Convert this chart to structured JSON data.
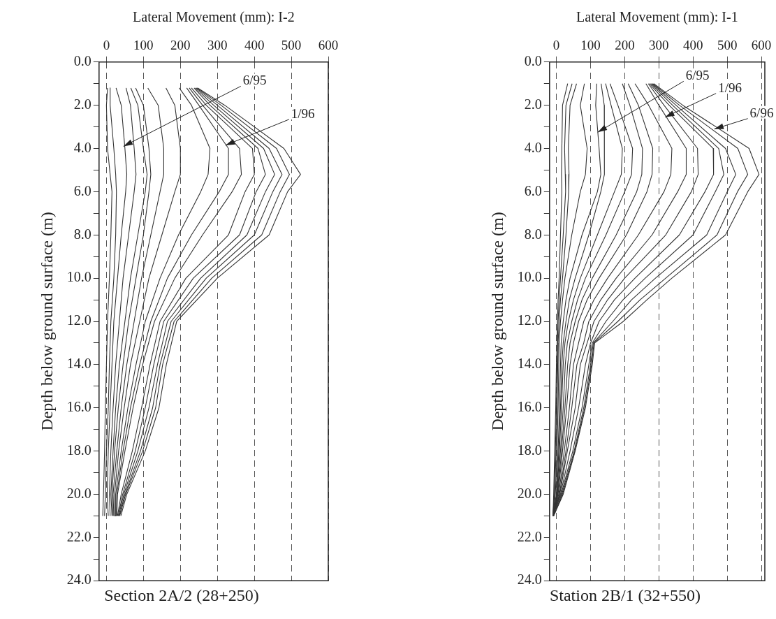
{
  "chart_data": [
    {
      "type": "line",
      "title": "Section 2A/2 (28+250)",
      "xlabel": "Lateral Movement (mm): I-2",
      "ylabel": "Depth below ground surface (m)",
      "grid": "x",
      "legend": false,
      "marker": "none",
      "line_style": "solid",
      "xlim": [
        -20,
        600
      ],
      "xticks": [
        0,
        100,
        200,
        300,
        400,
        500,
        600
      ],
      "ylim": [
        24,
        0
      ],
      "yticks": [
        {
          "value": 0,
          "label": "0.0"
        },
        {
          "value": 1,
          "label": null
        },
        {
          "value": 2,
          "label": "2.0"
        },
        {
          "value": 3,
          "label": null
        },
        {
          "value": 4,
          "label": "4.0"
        },
        {
          "value": 5,
          "label": null
        },
        {
          "value": 6,
          "label": "6.0"
        },
        {
          "value": 7,
          "label": null
        },
        {
          "value": 8,
          "label": "8.0"
        },
        {
          "value": 9,
          "label": null
        },
        {
          "value": 10,
          "label": "10.0"
        },
        {
          "value": 11,
          "label": null
        },
        {
          "value": 12,
          "label": "12.0"
        },
        {
          "value": 13,
          "label": null
        },
        {
          "value": 14,
          "label": "14.0"
        },
        {
          "value": 15,
          "label": null
        },
        {
          "value": 16,
          "label": "16.0"
        },
        {
          "value": 17,
          "label": null
        },
        {
          "value": 18,
          "label": "18.0"
        },
        {
          "value": 19,
          "label": null
        },
        {
          "value": 20,
          "label": "20.0"
        },
        {
          "value": 21,
          "label": null
        },
        {
          "value": 22,
          "label": "22.0"
        },
        {
          "value": 23,
          "label": null
        },
        {
          "value": 24,
          "label": "24.0"
        }
      ],
      "annotations": [
        {
          "text": "6/95",
          "x": 46,
          "y": 3.9
        },
        {
          "text": "1/96",
          "x": 322,
          "y": 3.85
        }
      ],
      "series": [
        {
          "color": "#333333",
          "x": [
            3,
            0,
            3,
            10,
            15,
            12,
            8,
            3,
            0,
            -3,
            -5,
            -8,
            -10
          ],
          "values": [
            1.2,
            2,
            4,
            5.2,
            6,
            8,
            10,
            12,
            14,
            16,
            18,
            20,
            21
          ]
        },
        {
          "color": "#333333",
          "x": [
            10,
            10,
            20,
            25,
            27,
            25,
            20,
            12,
            8,
            5,
            0,
            -3,
            -5
          ],
          "values": [
            1.2,
            2,
            4,
            5.2,
            6,
            8,
            10,
            12,
            14,
            16,
            18,
            20,
            21
          ]
        },
        {
          "color": "#333333",
          "x": [
            26,
            40,
            50,
            55,
            52,
            40,
            30,
            20,
            15,
            10,
            5,
            2,
            5
          ],
          "values": [
            1.2,
            2,
            4,
            5.2,
            6,
            8,
            10,
            12,
            14,
            16,
            18,
            20,
            21
          ]
        },
        {
          "color": "#333333",
          "x": [
            53,
            65,
            75,
            80,
            75,
            60,
            45,
            35,
            25,
            18,
            12,
            8,
            10
          ],
          "values": [
            1.2,
            2,
            4,
            5.2,
            6,
            8,
            10,
            12,
            14,
            16,
            18,
            20,
            21
          ]
        },
        {
          "color": "#333333",
          "x": [
            66,
            85,
            100,
            110,
            105,
            85,
            65,
            50,
            35,
            25,
            18,
            12,
            15
          ],
          "values": [
            1.2,
            2,
            4,
            5.2,
            6,
            8,
            10,
            12,
            14,
            16,
            18,
            20,
            21
          ]
        },
        {
          "color": "#333333",
          "x": [
            79,
            100,
            115,
            120,
            115,
            100,
            80,
            60,
            45,
            32,
            22,
            15,
            18
          ],
          "values": [
            1.2,
            2,
            4,
            5.2,
            6,
            8,
            10,
            12,
            14,
            16,
            18,
            20,
            21
          ]
        },
        {
          "color": "#333333",
          "x": [
            112,
            140,
            155,
            155,
            145,
            120,
            95,
            75,
            55,
            40,
            28,
            18,
            20
          ],
          "values": [
            1.2,
            2,
            4,
            5.2,
            6,
            8,
            10,
            12,
            14,
            16,
            18,
            20,
            21
          ]
        },
        {
          "color": "#333333",
          "x": [
            161,
            185,
            200,
            200,
            185,
            150,
            115,
            90,
            65,
            48,
            33,
            22,
            22
          ],
          "values": [
            1.2,
            2,
            4,
            5.2,
            6,
            8,
            10,
            12,
            14,
            16,
            18,
            20,
            21
          ]
        },
        {
          "color": "#333333",
          "x": [
            197,
            230,
            280,
            275,
            255,
            195,
            145,
            105,
            80,
            58,
            40,
            25,
            25
          ],
          "values": [
            1.2,
            2,
            4,
            5.2,
            6,
            8,
            10,
            12,
            14,
            16,
            18,
            20,
            21
          ]
        },
        {
          "color": "#333333",
          "x": [
            217,
            250,
            330,
            330,
            305,
            230,
            165,
            120,
            90,
            65,
            45,
            28,
            27
          ],
          "values": [
            1.2,
            2,
            4,
            5.2,
            6,
            8,
            10,
            12,
            14,
            16,
            18,
            20,
            21
          ]
        },
        {
          "color": "#333333",
          "x": [
            224,
            260,
            360,
            365,
            340,
            260,
            185,
            130,
            98,
            72,
            50,
            30,
            28
          ],
          "values": [
            1.2,
            2,
            4,
            5.2,
            6,
            8,
            10,
            12,
            14,
            16,
            18,
            20,
            21
          ]
        },
        {
          "color": "#333333",
          "x": [
            230,
            270,
            395,
            400,
            375,
            330,
            215,
            145,
            118,
            95,
            70,
            40,
            30
          ],
          "values": [
            1.2,
            2,
            4,
            5.2,
            6,
            8,
            10,
            12,
            14,
            16,
            18,
            20,
            21
          ]
        },
        {
          "color": "#333333",
          "x": [
            237,
            280,
            410,
            430,
            405,
            360,
            235,
            155,
            128,
            105,
            78,
            44,
            32
          ],
          "values": [
            1.2,
            2,
            4,
            5.2,
            6,
            8,
            10,
            12,
            14,
            16,
            18,
            20,
            21
          ]
        },
        {
          "color": "#333333",
          "x": [
            240,
            290,
            425,
            455,
            430,
            380,
            255,
            165,
            138,
            115,
            85,
            47,
            33
          ],
          "values": [
            1.2,
            2,
            4,
            5.2,
            6,
            8,
            10,
            12,
            14,
            16,
            18,
            20,
            21
          ]
        },
        {
          "color": "#333333",
          "x": [
            243,
            300,
            440,
            475,
            450,
            400,
            270,
            175,
            145,
            125,
            92,
            50,
            35
          ],
          "values": [
            1.2,
            2,
            4,
            5.2,
            6,
            8,
            10,
            12,
            14,
            16,
            18,
            20,
            21
          ]
        },
        {
          "color": "#333333",
          "x": [
            245,
            310,
            460,
            495,
            470,
            420,
            285,
            183,
            152,
            133,
            98,
            52,
            36
          ],
          "values": [
            1.2,
            2,
            4,
            5.2,
            6,
            8,
            10,
            12,
            14,
            16,
            18,
            20,
            21
          ]
        },
        {
          "color": "#333333",
          "x": [
            247,
            320,
            480,
            525,
            490,
            440,
            300,
            190,
            162,
            142,
            105,
            55,
            39
          ],
          "values": [
            1.2,
            2,
            4,
            5.2,
            6,
            8,
            10,
            12,
            14,
            16,
            18,
            20,
            21
          ]
        }
      ]
    },
    {
      "type": "line",
      "title": "Station 2B/1 (32+550)",
      "xlabel": "Lateral Movement (mm): I-1",
      "ylabel": "Depth below ground surface (m)",
      "grid": "x",
      "legend": false,
      "marker": "none",
      "line_style": "solid",
      "xlim": [
        -20,
        610
      ],
      "xticks": [
        0,
        100,
        200,
        300,
        400,
        500,
        600
      ],
      "ylim": [
        24,
        0
      ],
      "yticks": [
        {
          "value": 0,
          "label": "0.0"
        },
        {
          "value": 1,
          "label": null
        },
        {
          "value": 2,
          "label": "2.0"
        },
        {
          "value": 3,
          "label": null
        },
        {
          "value": 4,
          "label": "4.0"
        },
        {
          "value": 5,
          "label": null
        },
        {
          "value": 6,
          "label": "6.0"
        },
        {
          "value": 7,
          "label": null
        },
        {
          "value": 8,
          "label": "8.0"
        },
        {
          "value": 9,
          "label": null
        },
        {
          "value": 10,
          "label": "10.0"
        },
        {
          "value": 11,
          "label": null
        },
        {
          "value": 12,
          "label": "12.0"
        },
        {
          "value": 13,
          "label": null
        },
        {
          "value": 14,
          "label": "14.0"
        },
        {
          "value": 15,
          "label": null
        },
        {
          "value": 16,
          "label": "16.0"
        },
        {
          "value": 17,
          "label": null
        },
        {
          "value": 18,
          "label": "18.0"
        },
        {
          "value": 19,
          "label": null
        },
        {
          "value": 20,
          "label": "20.0"
        },
        {
          "value": 21,
          "label": null
        },
        {
          "value": 22,
          "label": "22.0"
        },
        {
          "value": 23,
          "label": null
        },
        {
          "value": 24,
          "label": "24.0"
        }
      ],
      "annotations": [
        {
          "text": "6/95",
          "x": 121,
          "y": 3.25
        },
        {
          "text": "1/96",
          "x": 318,
          "y": 2.55
        },
        {
          "text": "6/96",
          "x": 462,
          "y": 3.1
        }
      ],
      "series": [
        {
          "color": "#333333",
          "x": [
            33,
            18,
            16,
            15,
            16,
            12,
            8,
            5,
            3,
            2,
            0,
            -2,
            -5,
            -8,
            -10
          ],
          "values": [
            1,
            2,
            4,
            5.2,
            6,
            8,
            10,
            11,
            12,
            13,
            14,
            16,
            18,
            20,
            21
          ]
        },
        {
          "color": "#333333",
          "x": [
            46,
            28,
            24,
            26,
            27,
            20,
            12,
            8,
            5,
            3,
            2,
            0,
            -3,
            -6,
            -10
          ],
          "values": [
            1,
            2,
            4,
            5.2,
            6,
            8,
            10,
            11,
            12,
            13,
            14,
            16,
            18,
            20,
            21
          ]
        },
        {
          "color": "#333333",
          "x": [
            59,
            40,
            35,
            37,
            36,
            28,
            18,
            12,
            8,
            5,
            4,
            2,
            -1,
            -5,
            -10
          ],
          "values": [
            1,
            2,
            4,
            5.2,
            6,
            8,
            10,
            11,
            12,
            13,
            14,
            16,
            18,
            20,
            21
          ]
        },
        {
          "color": "#333333",
          "x": [
            82,
            70,
            90,
            85,
            70,
            45,
            25,
            18,
            12,
            8,
            7,
            5,
            2,
            -3,
            -10
          ],
          "values": [
            1,
            2,
            4,
            5.2,
            6,
            8,
            10,
            11,
            12,
            13,
            14,
            16,
            18,
            20,
            21
          ]
        },
        {
          "color": "#333333",
          "x": [
            118,
            115,
            125,
            130,
            120,
            75,
            40,
            28,
            20,
            14,
            12,
            9,
            5,
            0,
            -10
          ],
          "values": [
            1,
            2,
            4,
            5.2,
            6,
            8,
            10,
            11,
            12,
            13,
            14,
            16,
            18,
            20,
            21
          ]
        },
        {
          "color": "#333333",
          "x": [
            131,
            140,
            141,
            140,
            130,
            95,
            55,
            38,
            28,
            20,
            16,
            12,
            7,
            1,
            -10
          ],
          "values": [
            1,
            2,
            4,
            5.2,
            6,
            8,
            10,
            11,
            12,
            13,
            14,
            16,
            18,
            20,
            21
          ]
        },
        {
          "color": "#333333",
          "x": [
            144,
            160,
            193,
            190,
            170,
            120,
            70,
            50,
            35,
            25,
            20,
            15,
            9,
            2,
            -10
          ],
          "values": [
            1,
            2,
            4,
            5.2,
            6,
            8,
            10,
            11,
            12,
            13,
            14,
            16,
            18,
            20,
            21
          ]
        },
        {
          "color": "#333333",
          "x": [
            157,
            180,
            223,
            220,
            200,
            145,
            85,
            62,
            45,
            32,
            26,
            20,
            12,
            3,
            -10
          ],
          "values": [
            1,
            2,
            4,
            5.2,
            6,
            8,
            10,
            11,
            12,
            13,
            14,
            16,
            18,
            20,
            21
          ]
        },
        {
          "color": "#333333",
          "x": [
            193,
            215,
            252,
            250,
            235,
            175,
            105,
            75,
            55,
            40,
            33,
            25,
            15,
            4,
            -10
          ],
          "values": [
            1,
            2,
            4,
            5.2,
            6,
            8,
            10,
            11,
            12,
            13,
            14,
            16,
            18,
            20,
            21
          ]
        },
        {
          "color": "#333333",
          "x": [
            210,
            240,
            282,
            280,
            265,
            205,
            125,
            90,
            65,
            50,
            40,
            30,
            18,
            5,
            -10
          ],
          "values": [
            1,
            2,
            4,
            5.2,
            6,
            8,
            10,
            11,
            12,
            13,
            14,
            16,
            18,
            20,
            21
          ]
        },
        {
          "color": "#333333",
          "x": [
            230,
            270,
            338,
            335,
            315,
            240,
            150,
            110,
            80,
            65,
            50,
            38,
            23,
            7,
            -10
          ],
          "values": [
            1,
            2,
            4,
            5.2,
            6,
            8,
            10,
            11,
            12,
            13,
            14,
            16,
            18,
            20,
            21
          ]
        },
        {
          "color": "#333333",
          "x": [
            262,
            300,
            380,
            380,
            355,
            280,
            175,
            130,
            95,
            80,
            60,
            45,
            28,
            9,
            -10
          ],
          "values": [
            1,
            2,
            4,
            5.2,
            6,
            8,
            10,
            11,
            12,
            13,
            14,
            16,
            18,
            20,
            21
          ]
        },
        {
          "color": "#333333",
          "x": [
            269,
            315,
            413,
            415,
            395,
            320,
            200,
            150,
            110,
            90,
            70,
            55,
            32,
            10,
            -10
          ],
          "values": [
            1,
            2,
            4,
            5.2,
            6,
            8,
            10,
            11,
            12,
            13,
            14,
            16,
            18,
            20,
            21
          ]
        },
        {
          "color": "#333333",
          "x": [
            272,
            330,
            459,
            460,
            435,
            360,
            230,
            170,
            125,
            100,
            85,
            65,
            40,
            12,
            -10
          ],
          "values": [
            1,
            2,
            4,
            5.2,
            6,
            8,
            10,
            11,
            12,
            13,
            14,
            16,
            18,
            20,
            21
          ]
        },
        {
          "color": "#333333",
          "x": [
            276,
            340,
            475,
            490,
            465,
            400,
            260,
            195,
            145,
            105,
            95,
            75,
            48,
            14,
            -10
          ],
          "values": [
            1,
            2,
            4,
            5.2,
            6,
            8,
            10,
            11,
            12,
            13,
            14,
            16,
            18,
            20,
            21
          ]
        },
        {
          "color": "#333333",
          "x": [
            279,
            350,
            495,
            525,
            500,
            440,
            290,
            220,
            165,
            108,
            100,
            80,
            52,
            16,
            -8
          ],
          "values": [
            1,
            2,
            4,
            5.2,
            6,
            8,
            10,
            11,
            12,
            13,
            14,
            16,
            18,
            20,
            21
          ]
        },
        {
          "color": "#333333",
          "x": [
            282,
            360,
            531,
            560,
            530,
            470,
            320,
            245,
            180,
            110,
            103,
            83,
            54,
            18,
            -8
          ],
          "values": [
            1,
            2,
            4,
            5.2,
            6,
            8,
            10,
            11,
            12,
            13,
            14,
            16,
            18,
            20,
            21
          ]
        },
        {
          "color": "#333333",
          "x": [
            285,
            370,
            564,
            593,
            560,
            495,
            338,
            265,
            196,
            112,
            105,
            85,
            55,
            20,
            -8
          ],
          "values": [
            1,
            2,
            4,
            5.2,
            6,
            8,
            10,
            11,
            12,
            13,
            14,
            16,
            18,
            20,
            21
          ]
        }
      ]
    }
  ]
}
